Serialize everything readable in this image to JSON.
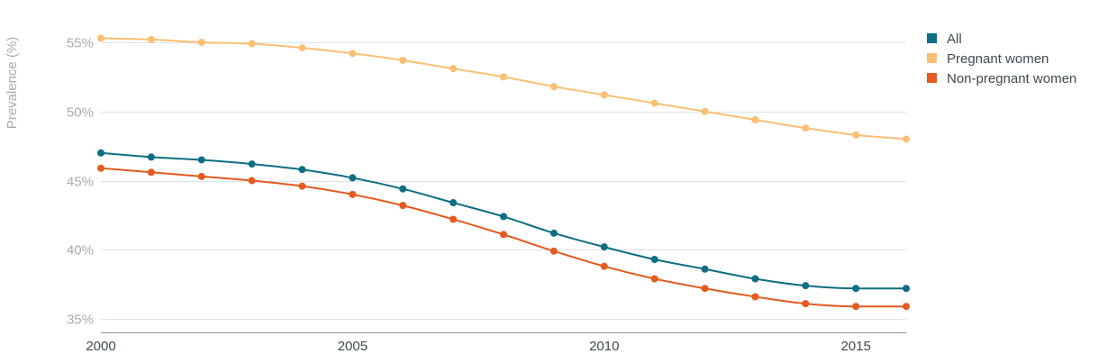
{
  "chart_data": {
    "type": "line",
    "title": "",
    "xlabel": "",
    "ylabel": "Prevalence (%)",
    "xlim": [
      2000,
      2016
    ],
    "ylim": [
      34,
      56
    ],
    "x": [
      2000,
      2001,
      2002,
      2003,
      2004,
      2005,
      2006,
      2007,
      2008,
      2009,
      2010,
      2011,
      2012,
      2013,
      2014,
      2015,
      2016
    ],
    "x_ticks": [
      2000,
      2005,
      2010,
      2015
    ],
    "x_tick_labels": [
      "2000",
      "2005",
      "2010",
      "2015"
    ],
    "y_ticks": [
      35,
      40,
      45,
      50,
      55
    ],
    "y_tick_labels": [
      "35%",
      "40%",
      "45%",
      "50%",
      "55%"
    ],
    "grid": "horizontal",
    "legend_position": "top-right",
    "series": [
      {
        "name": "All",
        "color": "#0e6e83",
        "values": [
          47.0,
          46.7,
          46.5,
          46.2,
          45.8,
          45.2,
          44.4,
          43.4,
          42.4,
          41.2,
          40.2,
          39.3,
          38.6,
          37.9,
          37.4,
          37.2,
          37.2
        ]
      },
      {
        "name": "Pregnant women",
        "color": "#fbbf74",
        "values": [
          55.3,
          55.2,
          55.0,
          54.9,
          54.6,
          54.2,
          53.7,
          53.1,
          52.5,
          51.8,
          51.2,
          50.6,
          50.0,
          49.4,
          48.8,
          48.3,
          48.0
        ]
      },
      {
        "name": "Non-pregnant women",
        "color": "#e45a1f",
        "values": [
          45.9,
          45.6,
          45.3,
          45.0,
          44.6,
          44.0,
          43.2,
          42.2,
          41.1,
          39.9,
          38.8,
          37.9,
          37.2,
          36.6,
          36.1,
          35.9,
          35.9
        ]
      }
    ]
  }
}
